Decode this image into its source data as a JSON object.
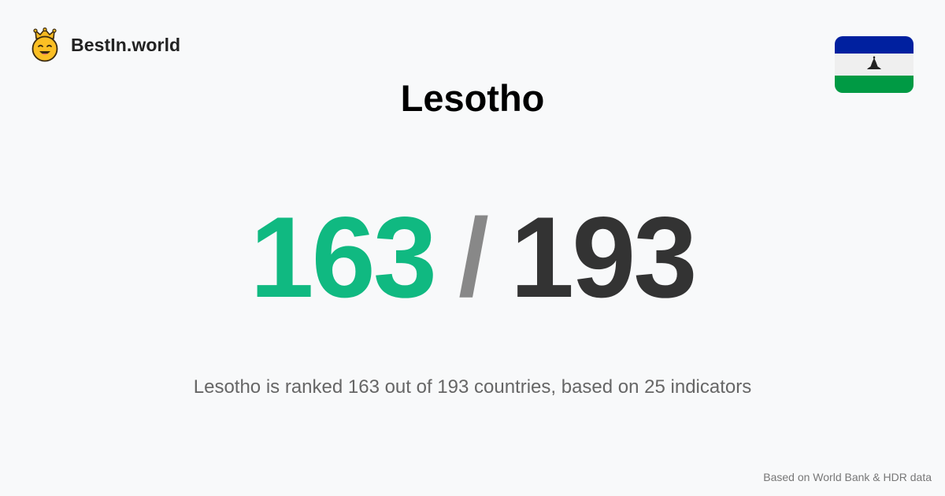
{
  "brand": {
    "logo_icon": "crown-smiley-icon",
    "name": "BestIn.world"
  },
  "flag": {
    "icon": "lesotho-flag-icon",
    "colors": {
      "top": "#00209f",
      "middle": "#efefef",
      "bottom": "#009a44",
      "emblem": "#222222"
    }
  },
  "country": {
    "title": "Lesotho"
  },
  "rank": {
    "value": "163",
    "separator": "/",
    "total": "193"
  },
  "summary": {
    "text": "Lesotho is ranked 163 out of 193 countries, based on 25 indicators"
  },
  "footer": {
    "source": "Based on World Bank & HDR data"
  },
  "colors": {
    "background": "#f8f9fa",
    "rank_value": "#10b981",
    "rank_separator": "#888888",
    "rank_total": "#333333",
    "summary_text": "#666666"
  }
}
